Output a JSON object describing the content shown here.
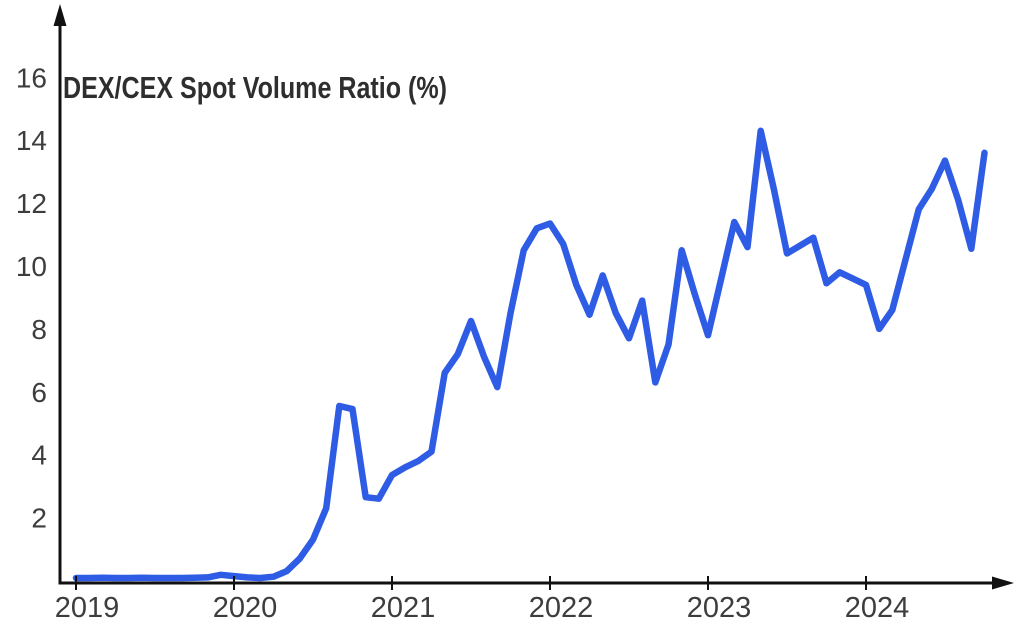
{
  "title": "DEX/CEX Spot Volume Ratio (%)",
  "chart_data": {
    "type": "line",
    "title": "DEX/CEX Spot Volume Ratio (%)",
    "xlabel": "",
    "ylabel": "",
    "grid": false,
    "legend": "none",
    "ylim": [
      0,
      17.5
    ],
    "y_ticks": [
      2,
      4,
      6,
      8,
      10,
      12,
      14,
      16
    ],
    "x_tick_labels": [
      "2019",
      "2020",
      "2021",
      "2022",
      "2023",
      "2024"
    ],
    "x": [
      "2019-01",
      "2019-02",
      "2019-03",
      "2019-04",
      "2019-05",
      "2019-06",
      "2019-07",
      "2019-08",
      "2019-09",
      "2019-10",
      "2019-11",
      "2019-12",
      "2020-01",
      "2020-02",
      "2020-03",
      "2020-04",
      "2020-05",
      "2020-06",
      "2020-07",
      "2020-08",
      "2020-09",
      "2020-10",
      "2020-11",
      "2020-12",
      "2021-01",
      "2021-02",
      "2021-03",
      "2021-04",
      "2021-05",
      "2021-06",
      "2021-07",
      "2021-08",
      "2021-09",
      "2021-10",
      "2021-11",
      "2021-12",
      "2022-01",
      "2022-02",
      "2022-03",
      "2022-04",
      "2022-05",
      "2022-06",
      "2022-07",
      "2022-08",
      "2022-09",
      "2022-10",
      "2022-11",
      "2022-12",
      "2023-01",
      "2023-02",
      "2023-03",
      "2023-04",
      "2023-05",
      "2023-06",
      "2023-07",
      "2023-08",
      "2023-09",
      "2023-10",
      "2023-11",
      "2023-12",
      "2024-01",
      "2024-02",
      "2024-03",
      "2024-04",
      "2024-05",
      "2024-06",
      "2024-07",
      "2024-08",
      "2024-09",
      "2024-10"
    ],
    "values": [
      0.08,
      0.08,
      0.09,
      0.08,
      0.08,
      0.09,
      0.08,
      0.08,
      0.08,
      0.09,
      0.1,
      0.18,
      0.14,
      0.1,
      0.08,
      0.12,
      0.3,
      0.7,
      1.3,
      2.3,
      5.55,
      5.45,
      2.65,
      2.6,
      3.35,
      3.6,
      3.8,
      4.1,
      6.6,
      7.2,
      8.25,
      7.1,
      6.15,
      8.5,
      10.5,
      11.2,
      11.35,
      10.7,
      9.4,
      8.45,
      9.7,
      8.5,
      7.7,
      8.9,
      6.3,
      7.5,
      10.5,
      9.1,
      7.8,
      9.6,
      11.4,
      10.6,
      14.3,
      12.45,
      10.4,
      10.65,
      10.9,
      9.45,
      9.8,
      9.6,
      9.4,
      8.0,
      8.6,
      10.2,
      11.8,
      12.45,
      13.35,
      12.1,
      10.55,
      13.6
    ],
    "colors": {
      "line": "#2e5ce4",
      "axis": "#111111",
      "labels": "#3d3d3d",
      "title": "#2e2e2e"
    }
  }
}
